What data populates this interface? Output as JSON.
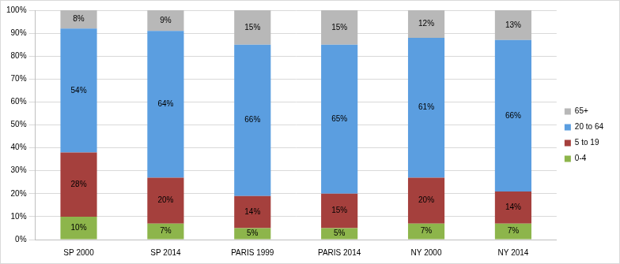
{
  "chart_data": {
    "type": "bar",
    "stacked": true,
    "grid": true,
    "legend": "right",
    "data_labels": true,
    "categories": [
      "SP 2000",
      "SP 2014",
      "PARIS 1999",
      "PARIS 2014",
      "NY 2000",
      "NY 2014"
    ],
    "ylim": [
      0,
      100
    ],
    "yticks": [
      {
        "value": 0,
        "label": "0%"
      },
      {
        "value": 10,
        "label": "10%"
      },
      {
        "value": 20,
        "label": "20%"
      },
      {
        "value": 30,
        "label": "30%"
      },
      {
        "value": 40,
        "label": "40%"
      },
      {
        "value": 50,
        "label": "50%"
      },
      {
        "value": 60,
        "label": "60%"
      },
      {
        "value": 70,
        "label": "70%"
      },
      {
        "value": 80,
        "label": "80%"
      },
      {
        "value": 90,
        "label": "90%"
      },
      {
        "value": 100,
        "label": "100%"
      }
    ],
    "series": [
      {
        "name": "0-4",
        "color": "#8db54b",
        "values": [
          10,
          7,
          5,
          5,
          7,
          7
        ],
        "value_labels": [
          "10%",
          "7%",
          "5%",
          "5%",
          "7%",
          "7%"
        ]
      },
      {
        "name": "5 to 19",
        "color": "#a5403d",
        "values": [
          28,
          20,
          14,
          15,
          20,
          14
        ],
        "value_labels": [
          "28%",
          "20%",
          "14%",
          "15%",
          "20%",
          "14%"
        ]
      },
      {
        "name": "20 to 64",
        "color": "#5b9ee0",
        "values": [
          54,
          64,
          66,
          65,
          61,
          66
        ],
        "value_labels": [
          "54%",
          "64%",
          "66%",
          "65%",
          "61%",
          "66%"
        ]
      },
      {
        "name": "65+",
        "color": "#b8b8b8",
        "values": [
          8,
          9,
          15,
          15,
          12,
          13
        ],
        "value_labels": [
          "8%",
          "9%",
          "15%",
          "15%",
          "12%",
          "13%"
        ]
      }
    ]
  }
}
